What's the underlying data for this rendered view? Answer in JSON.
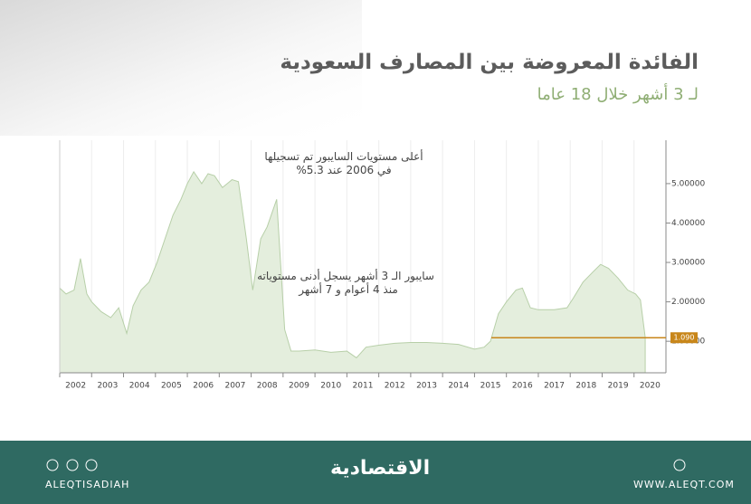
{
  "chart_data": {
    "type": "area",
    "title": "الفائدة المعروضة بين المصارف السعودية",
    "subtitle": "لـ 3 أشهر خلال 18 عاما",
    "annotations": [
      {
        "lines": [
          "أعلى مستويات السايبور تم تسجيلها",
          "في 2006 عند 5.3%"
        ]
      },
      {
        "lines": [
          "سايبور الـ 3 أشهر يسجل أدنى مستوياته",
          "منذ 4 أعوام و 7 أشهر"
        ]
      }
    ],
    "x": [
      2002.0,
      2002.2,
      2002.45,
      2002.65,
      2002.85,
      2003.0,
      2003.3,
      2003.6,
      2003.85,
      2004.1,
      2004.3,
      2004.55,
      2004.8,
      2005.05,
      2005.3,
      2005.55,
      2005.8,
      2006.0,
      2006.2,
      2006.45,
      2006.65,
      2006.85,
      2007.1,
      2007.4,
      2007.6,
      2007.85,
      2008.05,
      2008.3,
      2008.5,
      2008.8,
      2009.05,
      2009.25,
      2009.5,
      2010.0,
      2010.5,
      2011.0,
      2011.3,
      2011.6,
      2012.0,
      2012.5,
      2013.0,
      2013.5,
      2014.0,
      2014.5,
      2015.0,
      2015.3,
      2015.5,
      2015.75,
      2016.0,
      2016.3,
      2016.5,
      2016.75,
      2017.0,
      2017.5,
      2017.9,
      2018.1,
      2018.4,
      2018.7,
      2018.95,
      2019.2,
      2019.5,
      2019.8,
      2020.05,
      2020.2,
      2020.35
    ],
    "values": [
      2.35,
      2.2,
      2.3,
      3.1,
      2.2,
      2.0,
      1.75,
      1.6,
      1.85,
      1.2,
      1.9,
      2.3,
      2.5,
      3.0,
      3.6,
      4.2,
      4.6,
      5.0,
      5.3,
      5.0,
      5.25,
      5.2,
      4.9,
      5.1,
      5.05,
      3.6,
      2.3,
      3.6,
      3.9,
      4.6,
      1.3,
      0.75,
      0.75,
      0.78,
      0.72,
      0.75,
      0.58,
      0.85,
      0.9,
      0.95,
      0.97,
      0.97,
      0.95,
      0.92,
      0.8,
      0.85,
      1.0,
      1.7,
      2.0,
      2.3,
      2.35,
      1.85,
      1.8,
      1.8,
      1.85,
      2.1,
      2.5,
      2.75,
      2.95,
      2.85,
      2.6,
      2.3,
      2.2,
      2.05,
      1.1
    ],
    "color": "#e4eedd",
    "xlim": [
      2002,
      2021
    ],
    "xticks": [
      2002,
      2003,
      2004,
      2005,
      2006,
      2007,
      2008,
      2009,
      2010,
      2011,
      2012,
      2013,
      2014,
      2015,
      2016,
      2017,
      2018,
      2019,
      2020
    ],
    "ylim": [
      0.2,
      6.1
    ],
    "yticks": [
      {
        "value": 1,
        "label": "1.00000"
      },
      {
        "value": 2,
        "label": "2.00000"
      },
      {
        "value": 3,
        "label": "3.00000"
      },
      {
        "value": 4,
        "label": "4.00000"
      },
      {
        "value": 5,
        "label": "5.00000"
      }
    ],
    "grid": "x",
    "reference": {
      "value": 1.09,
      "label": "1.090",
      "color": "#c8861a"
    }
  },
  "footer": {
    "handle": "ALEQTISADIAH",
    "logo": "الاقتصادية",
    "website": "WWW.ALEQT.COM"
  }
}
